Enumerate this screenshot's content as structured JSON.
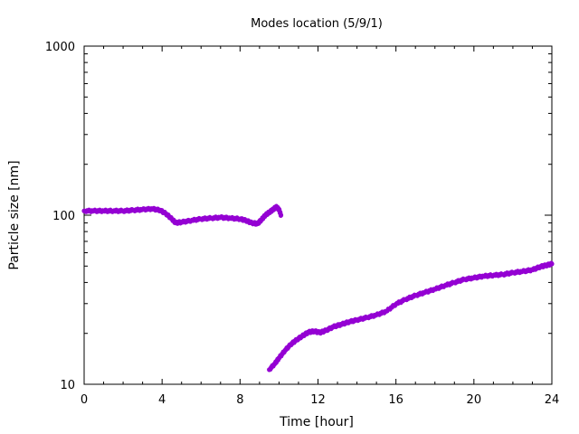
{
  "chart_data": {
    "type": "scatter",
    "title": "Modes location (5/9/1)",
    "xlabel": "Time [hour]",
    "ylabel": "Particle size [nm]",
    "xlim": [
      0,
      24
    ],
    "ylim": [
      10,
      1000
    ],
    "yscale": "log",
    "grid": false,
    "legend": "none",
    "marker_color": "#9400d3",
    "x_ticks": [
      0,
      4,
      8,
      12,
      16,
      20,
      24
    ],
    "x_tick_labels": [
      "0",
      "4",
      "8",
      "12",
      "16",
      "20",
      "24"
    ],
    "y_ticks": [
      10,
      100,
      1000
    ],
    "y_tick_labels": [
      "10",
      "100",
      "1000"
    ],
    "series": [
      {
        "x": [
          0.0,
          0.5,
          1.0,
          1.5,
          2.0,
          2.5,
          3.0,
          3.5,
          3.9,
          4.2,
          4.5,
          4.7,
          5.0,
          5.5,
          6.0,
          6.5,
          7.0,
          7.5,
          8.0,
          8.3,
          8.6,
          8.9,
          9.1,
          9.3,
          9.5,
          9.7,
          9.85,
          10.0,
          10.1
        ],
        "y": [
          106,
          106,
          106,
          106,
          106,
          107,
          108,
          109,
          107,
          102,
          95,
          90,
          91,
          93,
          95,
          96,
          97,
          96,
          95,
          93,
          90,
          89,
          94,
          100,
          104,
          108,
          112,
          108,
          100
        ]
      },
      {
        "x": [
          9.5,
          9.8,
          10.0,
          10.3,
          10.6,
          10.9,
          11.2,
          11.5,
          11.8,
          12.1,
          12.4,
          12.8,
          13.2,
          13.6,
          14.0,
          14.5,
          15.0,
          15.5,
          16.0,
          16.5,
          17.0,
          17.5,
          18.0,
          18.5,
          19.0,
          19.5,
          20.0,
          20.5,
          21.0,
          21.5,
          22.0,
          22.5,
          23.0,
          23.4,
          23.7,
          24.0
        ],
        "y": [
          12.2,
          13.3,
          14.3,
          15.8,
          17.2,
          18.3,
          19.3,
          20.3,
          20.6,
          20.2,
          20.8,
          21.9,
          22.6,
          23.4,
          24.0,
          24.8,
          25.7,
          27.0,
          29.8,
          31.8,
          33.5,
          35.0,
          36.5,
          38.3,
          40.0,
          41.7,
          42.6,
          43.6,
          44.1,
          44.6,
          45.7,
          46.5,
          47.5,
          49.5,
          50.5,
          51.5
        ]
      }
    ]
  }
}
